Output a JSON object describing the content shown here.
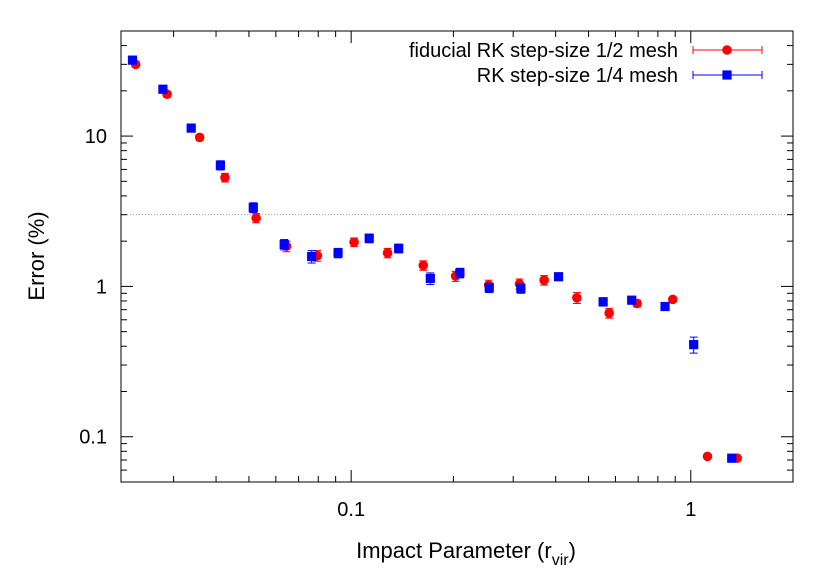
{
  "chart_data": {
    "type": "scatter",
    "title": "",
    "xlabel": "Impact Parameter (r",
    "xlabel_sub": "vir",
    "xlabel_close": ")",
    "ylabel": "Error (%)",
    "xscale": "log",
    "yscale": "log",
    "xlim": [
      0.021,
      2.0
    ],
    "ylim": [
      0.05,
      50
    ],
    "x_ticks": [
      {
        "value": 0.1,
        "label": "0.1"
      },
      {
        "value": 1,
        "label": "1"
      }
    ],
    "y_ticks": [
      {
        "value": 0.1,
        "label": "0.1"
      },
      {
        "value": 1,
        "label": "1"
      },
      {
        "value": 10,
        "label": "10"
      }
    ],
    "reference_line": {
      "y": 3.0,
      "style": "dotted",
      "color": "#999999"
    },
    "legend_position": "top-right",
    "grid": false,
    "series": [
      {
        "name": "fiducial RK step-size 1/2 mesh",
        "color": "#ff0000",
        "marker": "circle",
        "points": [
          {
            "x": 0.0232,
            "y": 30.0,
            "err": 1.2
          },
          {
            "x": 0.0287,
            "y": 19.0,
            "err": 0.8
          },
          {
            "x": 0.0358,
            "y": 9.8,
            "err": 0.4
          },
          {
            "x": 0.0425,
            "y": 5.3,
            "err": 0.35
          },
          {
            "x": 0.0525,
            "y": 2.85,
            "err": 0.2
          },
          {
            "x": 0.0645,
            "y": 1.85,
            "err": 0.15
          },
          {
            "x": 0.0795,
            "y": 1.6,
            "err": 0.13
          },
          {
            "x": 0.102,
            "y": 1.97,
            "err": 0.13
          },
          {
            "x": 0.128,
            "y": 1.67,
            "err": 0.12
          },
          {
            "x": 0.163,
            "y": 1.38,
            "err": 0.1
          },
          {
            "x": 0.203,
            "y": 1.17,
            "err": 0.09
          },
          {
            "x": 0.254,
            "y": 1.02,
            "err": 0.08
          },
          {
            "x": 0.313,
            "y": 1.04,
            "err": 0.08
          },
          {
            "x": 0.37,
            "y": 1.1,
            "err": 0.08
          },
          {
            "x": 0.462,
            "y": 0.84,
            "err": 0.07
          },
          {
            "x": 0.575,
            "y": 0.665,
            "err": 0.05
          },
          {
            "x": 0.695,
            "y": 0.77,
            "err": 0.04
          },
          {
            "x": 0.885,
            "y": 0.82,
            "err": 0.03
          },
          {
            "x": 1.12,
            "y": 0.074,
            "err": 0.002
          },
          {
            "x": 1.37,
            "y": 0.072,
            "err": 0.002
          }
        ]
      },
      {
        "name": "RK step-size 1/4 mesh",
        "color": "#0000ff",
        "marker": "square",
        "points": [
          {
            "x": 0.0227,
            "y": 32.0,
            "err": 1.3
          },
          {
            "x": 0.0279,
            "y": 20.5,
            "err": 0.9
          },
          {
            "x": 0.0338,
            "y": 11.3,
            "err": 0.5
          },
          {
            "x": 0.0412,
            "y": 6.4,
            "err": 0.45
          },
          {
            "x": 0.0515,
            "y": 3.35,
            "err": 0.25
          },
          {
            "x": 0.0635,
            "y": 1.9,
            "err": 0.15
          },
          {
            "x": 0.0765,
            "y": 1.58,
            "err": 0.15
          },
          {
            "x": 0.0915,
            "y": 1.67,
            "err": 0.12
          },
          {
            "x": 0.113,
            "y": 2.09,
            "err": 0.14
          },
          {
            "x": 0.138,
            "y": 1.79,
            "err": 0.12
          },
          {
            "x": 0.171,
            "y": 1.13,
            "err": 0.1
          },
          {
            "x": 0.209,
            "y": 1.23,
            "err": 0.09
          },
          {
            "x": 0.255,
            "y": 0.98,
            "err": 0.07
          },
          {
            "x": 0.316,
            "y": 0.97,
            "err": 0.07
          },
          {
            "x": 0.408,
            "y": 1.16,
            "err": 0.06
          },
          {
            "x": 0.552,
            "y": 0.79,
            "err": 0.05
          },
          {
            "x": 0.67,
            "y": 0.81,
            "err": 0.04
          },
          {
            "x": 0.84,
            "y": 0.735,
            "err": 0.04
          },
          {
            "x": 1.02,
            "y": 0.41,
            "err": 0.05
          },
          {
            "x": 1.32,
            "y": 0.072,
            "err": 0.002
          }
        ]
      }
    ]
  }
}
